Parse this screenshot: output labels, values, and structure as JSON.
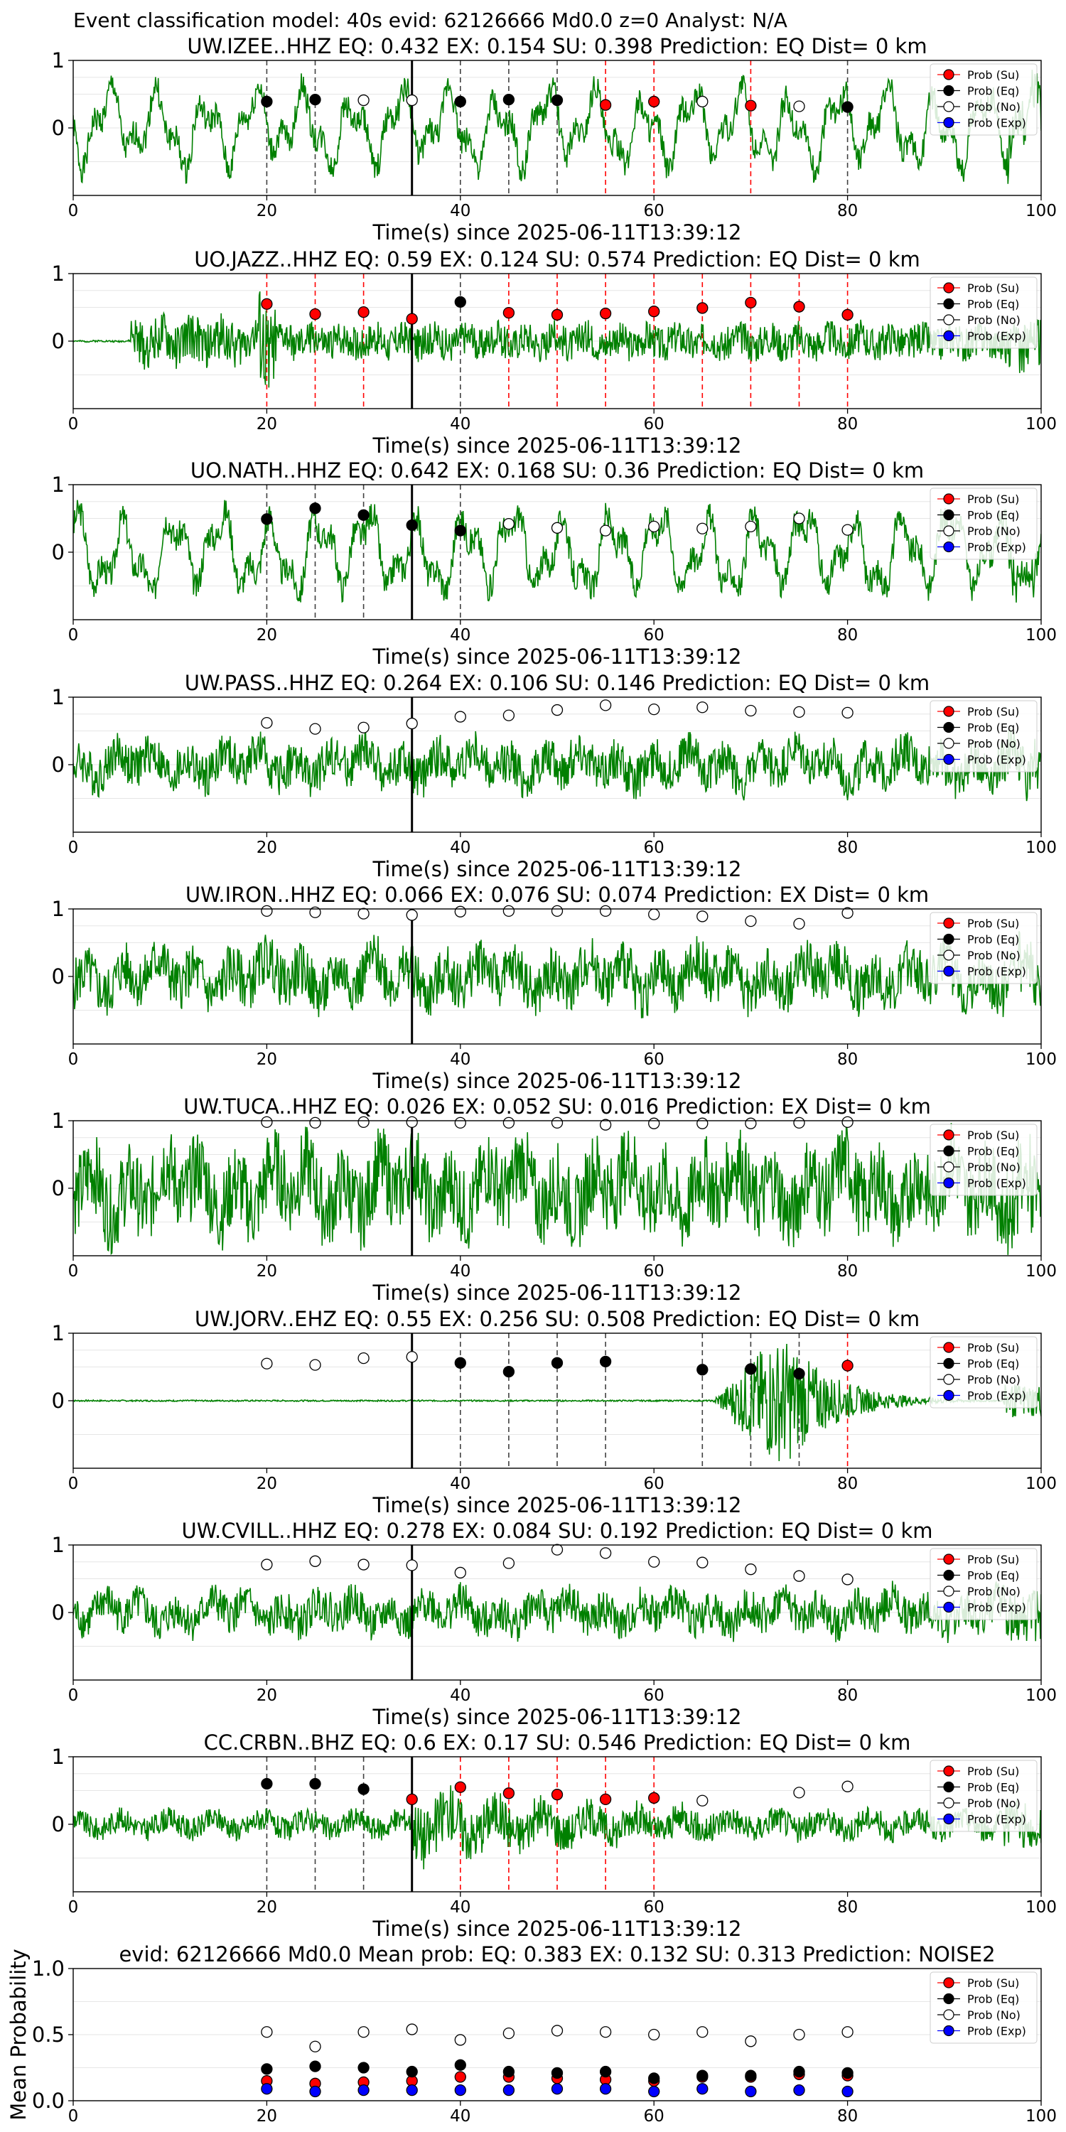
{
  "suptitle": "Event classification model: 40s evid: 62126666 Md0.0 z=0 Analyst: N/A",
  "legend": [
    "Prob (Su)",
    "Prob (Eq)",
    "Prob (No)",
    "Prob (Exp)"
  ],
  "colors": {
    "waveform": "#008000",
    "su": "#ff0000",
    "eq": "#000000",
    "no": "#ffffff",
    "exp": "#0000ff",
    "arrival": "#000000",
    "line_su": "#ff0000",
    "line_eq": "#404040"
  },
  "chart_data": [
    {
      "type": "line",
      "title": "UW.IZEE..HHZ   EQ: 0.432  EX: 0.154  SU: 0.398   Prediction: EQ    Dist= 0 km",
      "xlabel": "Time(s) since 2025-06-11T13:39:12",
      "xlim": [
        0,
        100
      ],
      "ylim": [
        -1,
        1
      ],
      "xticks": [
        "0",
        "20",
        "40",
        "60",
        "80",
        "100"
      ],
      "yticks": [
        "1",
        "0"
      ],
      "arrival_time": 35,
      "waveform": {
        "style": "oscillation",
        "amplitude": 0.72,
        "seed": 1,
        "onset": 0
      },
      "windows": [
        20,
        25,
        30,
        35,
        40,
        45,
        50,
        55,
        60,
        65,
        70,
        75,
        80
      ],
      "window_class": [
        "eq",
        "eq",
        "no",
        "no",
        "eq",
        "eq",
        "eq",
        "su",
        "su",
        "no",
        "su",
        "no",
        "eq"
      ],
      "window_prob": [
        0.39,
        0.42,
        0.41,
        0.41,
        0.39,
        0.42,
        0.41,
        0.34,
        0.39,
        0.39,
        0.33,
        0.32,
        0.31
      ]
    },
    {
      "type": "line",
      "title": "UO.JAZZ..HHZ   EQ: 0.59  EX: 0.124  SU: 0.574   Prediction: EQ    Dist= 0 km",
      "xlabel": "Time(s) since 2025-06-11T13:39:12",
      "xlim": [
        0,
        100
      ],
      "ylim": [
        -1,
        1
      ],
      "xticks": [
        "0",
        "20",
        "40",
        "60",
        "80",
        "100"
      ],
      "yticks": [
        "1",
        "0"
      ],
      "arrival_time": 35,
      "waveform": {
        "style": "noise-burst",
        "amplitude": 0.45,
        "seed": 2,
        "onset": 6
      },
      "windows": [
        20,
        25,
        30,
        35,
        40,
        45,
        50,
        55,
        60,
        65,
        70,
        75,
        80
      ],
      "window_class": [
        "su",
        "su",
        "su",
        "su",
        "eq",
        "su",
        "su",
        "su",
        "su",
        "su",
        "su",
        "su",
        "su"
      ],
      "window_prob": [
        0.55,
        0.4,
        0.43,
        0.33,
        0.58,
        0.42,
        0.39,
        0.41,
        0.44,
        0.49,
        0.57,
        0.51,
        0.39
      ]
    },
    {
      "type": "line",
      "title": "UO.NATH..HHZ   EQ: 0.642  EX: 0.168  SU: 0.36   Prediction: EQ    Dist= 0 km",
      "xlabel": "Time(s) since 2025-06-11T13:39:12",
      "xlim": [
        0,
        100
      ],
      "ylim": [
        -1,
        1
      ],
      "xticks": [
        "0",
        "20",
        "40",
        "60",
        "80",
        "100"
      ],
      "yticks": [
        "1",
        "0"
      ],
      "arrival_time": 35,
      "waveform": {
        "style": "oscillation",
        "amplitude": 0.75,
        "seed": 3,
        "onset": 0
      },
      "windows": [
        20,
        25,
        30,
        35,
        40,
        45,
        50,
        55,
        60,
        65,
        70,
        75,
        80
      ],
      "window_class": [
        "eq",
        "eq",
        "eq",
        "eq",
        "eq",
        "no",
        "no",
        "no",
        "no",
        "no",
        "no",
        "no",
        "no"
      ],
      "window_prob": [
        0.49,
        0.65,
        0.55,
        0.4,
        0.32,
        0.42,
        0.36,
        0.32,
        0.38,
        0.35,
        0.38,
        0.5,
        0.33
      ]
    },
    {
      "type": "line",
      "title": "UW.PASS..HHZ   EQ: 0.264  EX: 0.106  SU: 0.146   Prediction: EQ    Dist= 0 km",
      "xlabel": "Time(s) since 2025-06-11T13:39:12",
      "xlim": [
        0,
        100
      ],
      "ylim": [
        -1,
        1
      ],
      "xticks": [
        "0",
        "20",
        "40",
        "60",
        "80",
        "100"
      ],
      "yticks": [
        "1",
        "0"
      ],
      "arrival_time": 35,
      "waveform": {
        "style": "noise",
        "amplitude": 0.45,
        "seed": 4,
        "onset": 0
      },
      "windows": [
        20,
        25,
        30,
        35,
        40,
        45,
        50,
        55,
        60,
        65,
        70,
        75,
        80
      ],
      "window_class": [
        "no",
        "no",
        "no",
        "no",
        "no",
        "no",
        "no",
        "no",
        "no",
        "no",
        "no",
        "no",
        "no"
      ],
      "window_prob": [
        0.62,
        0.53,
        0.55,
        0.61,
        0.71,
        0.73,
        0.81,
        0.88,
        0.82,
        0.85,
        0.8,
        0.78,
        0.77
      ]
    },
    {
      "type": "line",
      "title": "UW.IRON..HHZ   EQ: 0.066  EX: 0.076  SU: 0.074   Prediction: EX    Dist= 0 km",
      "xlabel": "Time(s) since 2025-06-11T13:39:12",
      "xlim": [
        0,
        100
      ],
      "ylim": [
        -1,
        1
      ],
      "xticks": [
        "0",
        "20",
        "40",
        "60",
        "80",
        "100"
      ],
      "yticks": [
        "1",
        "0"
      ],
      "arrival_time": 35,
      "waveform": {
        "style": "noise",
        "amplitude": 0.55,
        "seed": 5,
        "onset": 0
      },
      "windows": [
        20,
        25,
        30,
        35,
        40,
        45,
        50,
        55,
        60,
        65,
        70,
        75,
        80
      ],
      "window_class": [
        "no",
        "no",
        "no",
        "no",
        "no",
        "no",
        "no",
        "no",
        "no",
        "no",
        "no",
        "no",
        "no"
      ],
      "window_prob": [
        0.97,
        0.95,
        0.93,
        0.91,
        0.96,
        0.97,
        0.97,
        0.97,
        0.92,
        0.89,
        0.82,
        0.78,
        0.94
      ]
    },
    {
      "type": "line",
      "title": "UW.TUCA..HHZ   EQ: 0.026  EX: 0.052  SU: 0.016   Prediction: EX    Dist= 0 km",
      "xlabel": "Time(s) since 2025-06-11T13:39:12",
      "xlim": [
        0,
        100
      ],
      "ylim": [
        -1,
        1
      ],
      "xticks": [
        "0",
        "20",
        "40",
        "60",
        "80",
        "100"
      ],
      "yticks": [
        "1",
        "0"
      ],
      "arrival_time": 35,
      "waveform": {
        "style": "noise",
        "amplitude": 0.85,
        "seed": 6,
        "onset": 0
      },
      "windows": [
        20,
        25,
        30,
        35,
        40,
        45,
        50,
        55,
        60,
        65,
        70,
        75,
        80
      ],
      "window_class": [
        "no",
        "no",
        "no",
        "no",
        "no",
        "no",
        "no",
        "no",
        "no",
        "no",
        "no",
        "no",
        "no"
      ],
      "window_prob": [
        0.98,
        0.97,
        0.98,
        0.98,
        0.97,
        0.97,
        0.97,
        0.94,
        0.96,
        0.96,
        0.96,
        0.97,
        0.98
      ]
    },
    {
      "type": "line",
      "title": "UW.JORV..EHZ   EQ: 0.55  EX: 0.256  SU: 0.508   Prediction: EQ    Dist= 0 km",
      "xlabel": "Time(s) since 2025-06-11T13:39:12",
      "xlim": [
        0,
        100
      ],
      "ylim": [
        -1,
        1
      ],
      "xticks": [
        "0",
        "20",
        "40",
        "60",
        "80",
        "100"
      ],
      "yticks": [
        "1",
        "0"
      ],
      "arrival_time": 35,
      "waveform": {
        "style": "late-event",
        "amplitude": 0.9,
        "seed": 7,
        "onset": 66
      },
      "windows": [
        20,
        25,
        30,
        35,
        40,
        45,
        50,
        55,
        60,
        65,
        70,
        75,
        80
      ],
      "window_class": [
        "no",
        "no",
        "no",
        "no",
        "eq",
        "eq",
        "eq",
        "eq",
        null,
        "eq",
        "eq",
        "eq",
        "su"
      ],
      "window_prob": [
        0.55,
        0.53,
        0.63,
        0.65,
        0.56,
        0.43,
        0.56,
        0.58,
        null,
        0.46,
        0.47,
        0.4,
        0.52
      ]
    },
    {
      "type": "line",
      "title": "UW.CVILL..HHZ   EQ: 0.278  EX: 0.084  SU: 0.192   Prediction: EQ    Dist= 0 km",
      "xlabel": "Time(s) since 2025-06-11T13:39:12",
      "xlim": [
        0,
        100
      ],
      "ylim": [
        -1,
        1
      ],
      "xticks": [
        "0",
        "20",
        "40",
        "60",
        "80",
        "100"
      ],
      "yticks": [
        "1",
        "0"
      ],
      "arrival_time": 35,
      "waveform": {
        "style": "noise",
        "amplitude": 0.4,
        "seed": 8,
        "onset": 0
      },
      "windows": [
        20,
        25,
        30,
        35,
        40,
        45,
        50,
        55,
        60,
        65,
        70,
        75,
        80
      ],
      "window_class": [
        "no",
        "no",
        "no",
        "no",
        "no",
        "no",
        "no",
        "no",
        "no",
        "no",
        "no",
        "no",
        "no"
      ],
      "window_prob": [
        0.71,
        0.76,
        0.71,
        0.7,
        0.59,
        0.73,
        0.93,
        0.88,
        0.75,
        0.74,
        0.64,
        0.54,
        0.49
      ]
    },
    {
      "type": "line",
      "title": "CC.CRBN..BHZ   EQ: 0.6  EX: 0.17  SU: 0.546   Prediction: EQ    Dist= 0 km",
      "xlabel": "Time(s) since 2025-06-11T13:39:12",
      "xlim": [
        0,
        100
      ],
      "ylim": [
        -1,
        1
      ],
      "xticks": [
        "0",
        "20",
        "40",
        "60",
        "80",
        "100"
      ],
      "yticks": [
        "1",
        "0"
      ],
      "arrival_time": 35,
      "waveform": {
        "style": "mid-event",
        "amplitude": 0.6,
        "seed": 9,
        "onset": 35
      },
      "windows": [
        20,
        25,
        30,
        35,
        40,
        45,
        50,
        55,
        60,
        65,
        70,
        75,
        80
      ],
      "window_class": [
        "eq",
        "eq",
        "eq",
        "su",
        "su",
        "su",
        "su",
        "su",
        "su",
        "no",
        null,
        "no",
        "no"
      ],
      "window_prob": [
        0.6,
        0.6,
        0.52,
        0.37,
        0.55,
        0.46,
        0.44,
        0.37,
        0.39,
        0.35,
        null,
        0.47,
        0.56
      ]
    },
    {
      "type": "scatter",
      "title": "evid: 62126666  Md0.0   Mean prob:    EQ: 0.383  EX: 0.132  SU: 0.313   Prediction: NOISE2",
      "xlabel": "",
      "ylabel": "Mean Probability",
      "xlim": [
        0,
        100
      ],
      "ylim": [
        0,
        1
      ],
      "xticks": [
        "0",
        "20",
        "40",
        "60",
        "80",
        "100"
      ],
      "yticks": [
        "1.0",
        "0.5",
        "0.0"
      ],
      "x": [
        20,
        25,
        30,
        35,
        40,
        45,
        50,
        55,
        60,
        65,
        70,
        75,
        80
      ],
      "series": [
        {
          "name": "Prob (Su)",
          "values": [
            0.15,
            0.13,
            0.14,
            0.15,
            0.18,
            0.18,
            0.17,
            0.16,
            0.15,
            0.18,
            0.18,
            0.2,
            0.19
          ]
        },
        {
          "name": "Prob (Eq)",
          "values": [
            0.24,
            0.26,
            0.25,
            0.22,
            0.27,
            0.22,
            0.21,
            0.22,
            0.17,
            0.19,
            0.19,
            0.22,
            0.21
          ]
        },
        {
          "name": "Prob (No)",
          "values": [
            0.52,
            0.41,
            0.52,
            0.54,
            0.46,
            0.51,
            0.53,
            0.52,
            0.5,
            0.52,
            0.45,
            0.5,
            0.52
          ]
        },
        {
          "name": "Prob (Exp)",
          "values": [
            0.09,
            0.07,
            0.08,
            0.08,
            0.08,
            0.08,
            0.09,
            0.09,
            0.07,
            0.09,
            0.07,
            0.08,
            0.07
          ]
        }
      ]
    }
  ]
}
